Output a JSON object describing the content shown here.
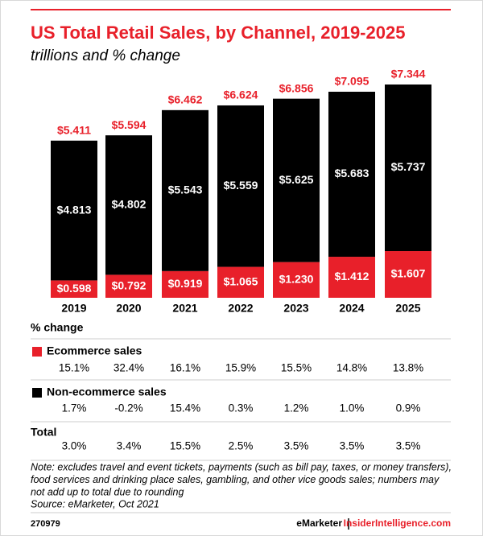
{
  "chart_data": {
    "type": "stacked_bar",
    "title": "US Total Retail Sales, by Channel, 2019-2025",
    "subtitle": "trillions and % change",
    "categories": [
      "2019",
      "2020",
      "2021",
      "2022",
      "2023",
      "2024",
      "2025"
    ],
    "series": [
      {
        "name": "Ecommerce sales",
        "color": "#e8202a",
        "values": [
          0.598,
          0.792,
          0.919,
          1.065,
          1.23,
          1.412,
          1.607
        ],
        "value_labels": [
          "$0.598",
          "$0.792",
          "$0.919",
          "$1.065",
          "$1.230",
          "$1.412",
          "$1.607"
        ]
      },
      {
        "name": "Non-ecommerce sales",
        "color": "#000000",
        "values": [
          4.813,
          4.802,
          5.543,
          5.559,
          5.625,
          5.683,
          5.737
        ],
        "value_labels": [
          "$4.813",
          "$4.802",
          "$5.543",
          "$5.559",
          "$5.625",
          "$5.683",
          "$5.737"
        ]
      }
    ],
    "totals": {
      "color": "#e8202a",
      "values": [
        5.411,
        5.594,
        6.462,
        6.624,
        6.856,
        7.095,
        7.344
      ],
      "value_labels": [
        "$5.411",
        "$5.594",
        "$6.462",
        "$6.624",
        "$6.856",
        "$7.095",
        "$7.344"
      ]
    },
    "pct_change": {
      "title": "% change",
      "rows": [
        {
          "values": [
            15.1,
            32.4,
            16.1,
            15.9,
            15.5,
            14.8,
            13.8
          ],
          "value_labels": [
            "15.1%",
            "32.4%",
            "16.1%",
            "15.9%",
            "15.5%",
            "14.8%",
            "13.8%"
          ]
        },
        {
          "values": [
            1.7,
            -0.2,
            15.4,
            0.3,
            1.2,
            1.0,
            0.9
          ],
          "value_labels": [
            "1.7%",
            "-0.2%",
            "15.4%",
            "0.3%",
            "1.2%",
            "1.0%",
            "0.9%"
          ]
        },
        {
          "name": "Total",
          "values": [
            3.0,
            3.4,
            15.5,
            2.5,
            3.5,
            3.5,
            3.5
          ],
          "value_labels": [
            "3.0%",
            "3.4%",
            "15.5%",
            "2.5%",
            "3.5%",
            "3.5%",
            "3.5%"
          ]
        }
      ]
    },
    "note_lines": [
      "Note: excludes travel and event tickets, payments (such as bill pay, taxes, or money transfers),",
      "food services and drinking place sales, gambling, and other vice goods sales; numbers may",
      "not add up to total due to rounding"
    ],
    "source": "Source: eMarketer, Oct 2021",
    "chart_id": "270979",
    "brand": "eMarketer",
    "site": "InsiderIntelligence.com"
  }
}
